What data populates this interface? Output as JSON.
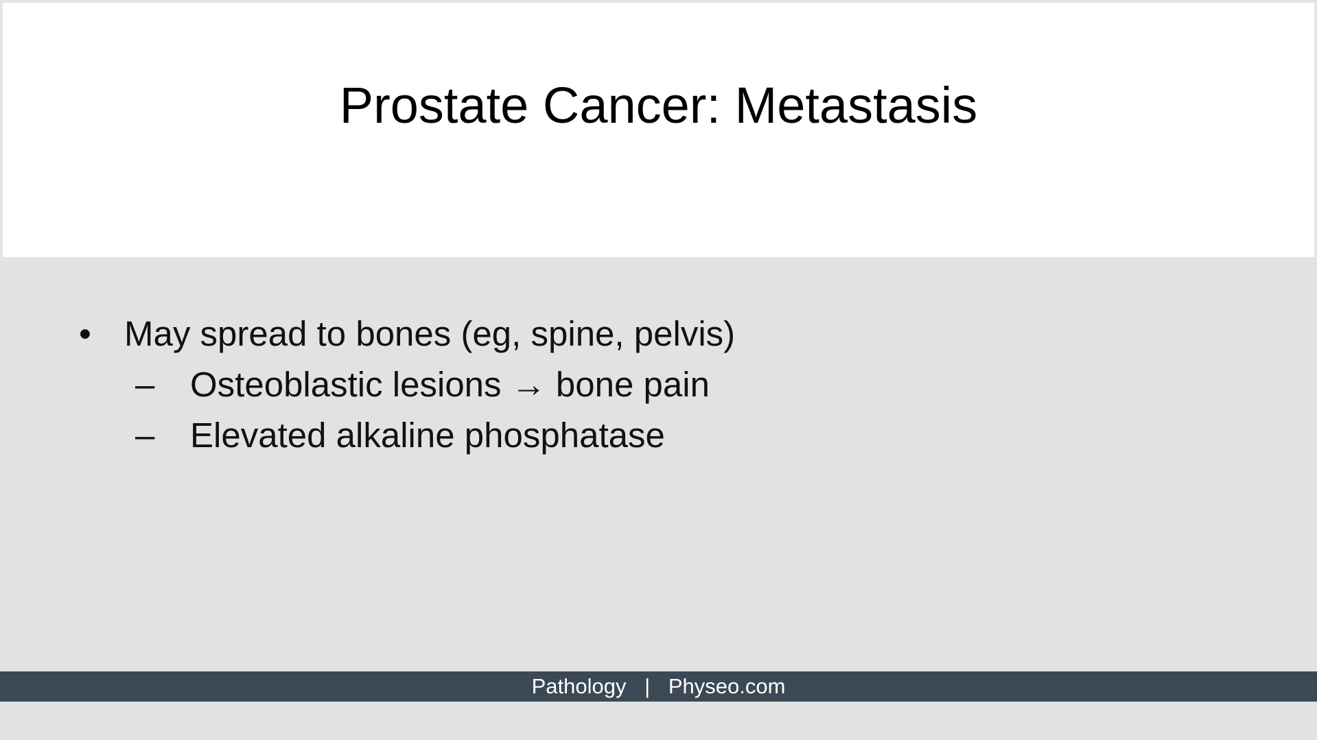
{
  "slide": {
    "title": "Prostate Cancer: Metastasis",
    "bullets": [
      {
        "marker": "•",
        "text": "May spread to bones (eg, spine, pelvis)"
      },
      {
        "marker": "–",
        "text": "Osteoblastic lesions → bone pain"
      },
      {
        "marker": "–",
        "text": "Elevated alkaline phosphatase"
      }
    ]
  },
  "footer": {
    "left": "Pathology",
    "separator": "|",
    "right": "Physeo.com"
  },
  "colors": {
    "title_background": "#ffffff",
    "body_background": "#e2e2e2",
    "footer_background": "#3b4955",
    "footer_text": "#ffffff"
  }
}
